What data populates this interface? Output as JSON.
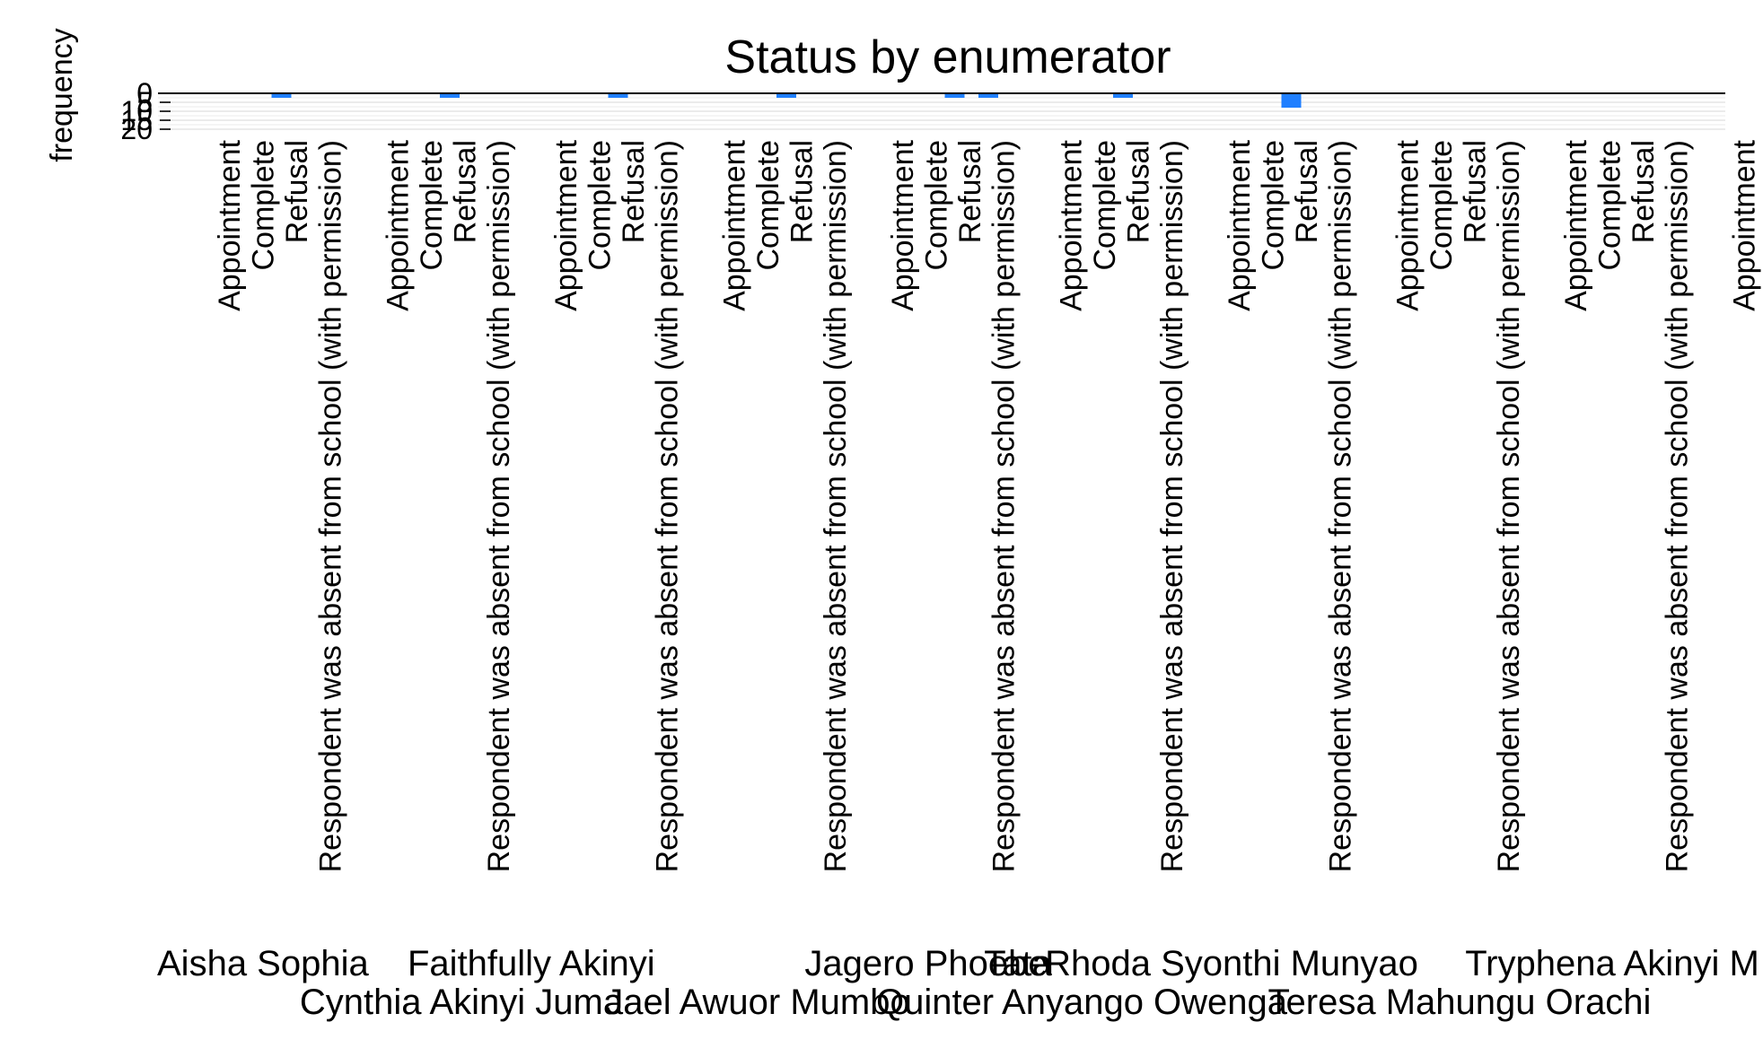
{
  "chart_data": {
    "type": "bar",
    "title": "Status by enumerator",
    "xlabel": "",
    "ylabel": "frequency",
    "y_reversed": true,
    "ylim": [
      0,
      20
    ],
    "yticks": [
      "0",
      "5",
      "10",
      "15",
      "20"
    ],
    "grid": true,
    "statuses": [
      "Appointment",
      "Complete",
      "Refusal",
      "Respondent was absent from school (with permission)"
    ],
    "groups": [
      {
        "name": "Aisha Sophia",
        "values": [
          0,
          1,
          0,
          0
        ]
      },
      {
        "name": "Cynthia Akinyi Juma",
        "values": [
          0,
          1,
          0,
          0
        ]
      },
      {
        "name": "Faithfully Akinyi",
        "values": [
          0,
          1,
          0,
          0
        ]
      },
      {
        "name": "Jael Awuor Mumbo",
        "values": [
          0,
          1,
          0,
          0
        ]
      },
      {
        "name": "Jagero Phoebe",
        "values": [
          0,
          1,
          1,
          0
        ]
      },
      {
        "name": "Quinter Anyango Owenga",
        "values": [
          0,
          1,
          0,
          0
        ]
      },
      {
        "name": "Rhoda Syonthi Munyao",
        "values": [
          0,
          8,
          0,
          0
        ]
      },
      {
        "name": "Teresa Mahungu Orachi",
        "values": [
          0,
          0,
          0,
          0
        ]
      },
      {
        "name": "Tryphena Akinyi M",
        "values": [
          0,
          0,
          0,
          0
        ]
      },
      {
        "name": "Tata",
        "values": [
          0,
          0,
          0,
          0
        ]
      }
    ],
    "colors": {
      "bar": "#1f7fff",
      "grid": "#ebebeb",
      "axis": "#000000"
    }
  }
}
